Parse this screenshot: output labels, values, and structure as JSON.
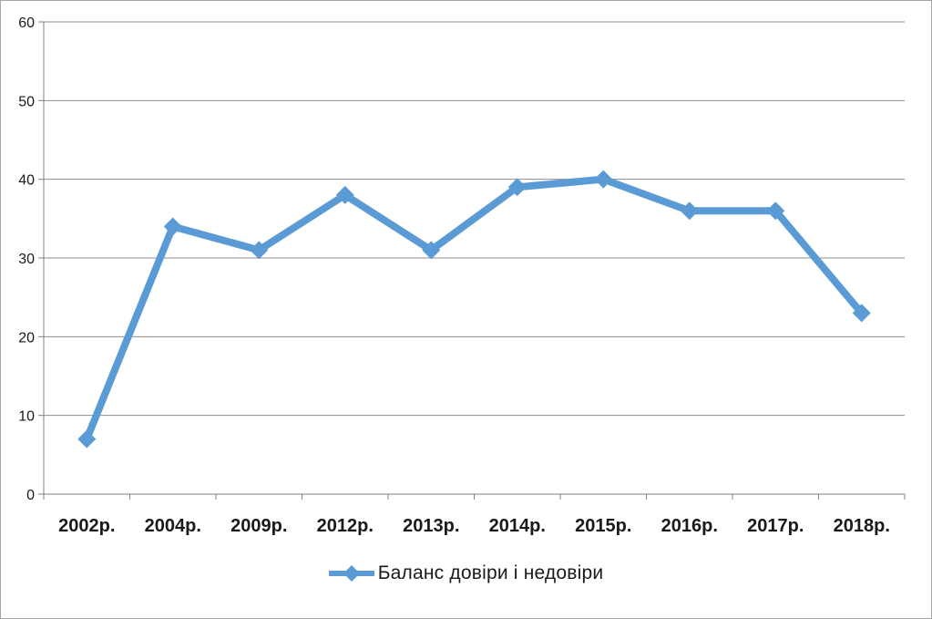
{
  "chart_data": {
    "type": "line",
    "title": "",
    "xlabel": "",
    "ylabel": "",
    "categories": [
      "2002р.",
      "2004р.",
      "2009р.",
      "2012р.",
      "2013р.",
      "2014р.",
      "2015р.",
      "2016р.",
      "2017р.",
      "2018р."
    ],
    "series": [
      {
        "name": "Баланс довіри і недовіри",
        "values": [
          7,
          34,
          31,
          38,
          31,
          39,
          40,
          36,
          36,
          23
        ],
        "color": "#5B9BD5",
        "marker": "diamond"
      }
    ],
    "ylim": [
      0,
      60
    ],
    "yticks": [
      0,
      10,
      20,
      30,
      40,
      50,
      60
    ],
    "grid": true,
    "legend_position": "bottom"
  },
  "colors": {
    "line": "#5B9BD5",
    "gridline": "#8C8C8C",
    "axis": "#808080",
    "border": "#A6A6A6",
    "text": "#1A1A1A"
  }
}
